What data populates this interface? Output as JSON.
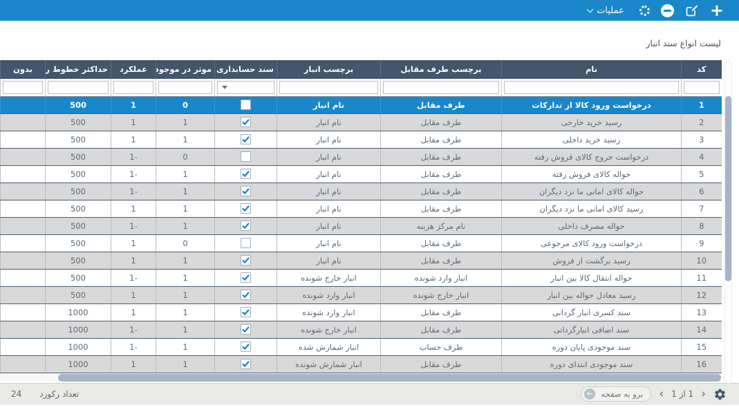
{
  "topbar": {
    "operations_label": "عملیات",
    "icons": [
      "plus-icon",
      "edit-icon",
      "minus-circle-icon",
      "spinner-icon",
      "chevron-down-icon"
    ]
  },
  "page": {
    "title": "لیست انواع سند انبار"
  },
  "table": {
    "columns": [
      {
        "key": "code",
        "label": "کد"
      },
      {
        "key": "name",
        "label": "نام"
      },
      {
        "key": "party",
        "label": "برچسب طرف مقابل"
      },
      {
        "key": "store",
        "label": "برچسب انبار"
      },
      {
        "key": "accdoc",
        "label": "سند حسابداری"
      },
      {
        "key": "effective",
        "label": "موثر در موجودی"
      },
      {
        "key": "func",
        "label": "عملکرد"
      },
      {
        "key": "maxlines",
        "label": "حداکثر خطوط ریز"
      },
      {
        "key": "extra",
        "label": "بدون"
      }
    ],
    "filter_values": {
      "code": "",
      "name": "",
      "party": "",
      "store": "",
      "accdoc": "",
      "effective": "",
      "func": "",
      "maxlines": "",
      "extra": ""
    },
    "selected_row_code": "1",
    "rows": [
      {
        "code": "1",
        "name": "درخواست ورود کالا از تدارکات",
        "party": "طرف مقابل",
        "store": "نام انبار",
        "accdoc": false,
        "effective": "0",
        "func": "1",
        "maxlines": "500",
        "extra": ""
      },
      {
        "code": "2",
        "name": "رسید خرید خارجی",
        "party": "طرف مقابل",
        "store": "نام انبار",
        "accdoc": true,
        "effective": "1",
        "func": "1",
        "maxlines": "500",
        "extra": ""
      },
      {
        "code": "3",
        "name": "رسید خرید داخلی",
        "party": "طرف مقابل",
        "store": "نام انبار",
        "accdoc": true,
        "effective": "1",
        "func": "1",
        "maxlines": "500",
        "extra": ""
      },
      {
        "code": "4",
        "name": "درخواست خروج کالای فروش رفته",
        "party": "طرف مقابل",
        "store": "نام انبار",
        "accdoc": false,
        "effective": "0",
        "func": "1-",
        "maxlines": "500",
        "extra": ""
      },
      {
        "code": "5",
        "name": "حواله کالای فروش رفته",
        "party": "طرف مقابل",
        "store": "نام انبار",
        "accdoc": true,
        "effective": "1",
        "func": "1-",
        "maxlines": "500",
        "extra": ""
      },
      {
        "code": "6",
        "name": "حواله کالای امانی ما نزد دیگران",
        "party": "طرف مقابل",
        "store": "نام انبار",
        "accdoc": true,
        "effective": "1",
        "func": "1-",
        "maxlines": "500",
        "extra": ""
      },
      {
        "code": "7",
        "name": "رسید کالای امانی ما نزد دیگران",
        "party": "طرف مقابل",
        "store": "نام انبار",
        "accdoc": true,
        "effective": "1",
        "func": "1",
        "maxlines": "500",
        "extra": ""
      },
      {
        "code": "8",
        "name": "حواله مصرف داخلی",
        "party": "نام مرکز هزینه",
        "store": "نام انبار",
        "accdoc": true,
        "effective": "1",
        "func": "1-",
        "maxlines": "500",
        "extra": ""
      },
      {
        "code": "9",
        "name": "درخواست ورود کالای مرجوعی",
        "party": "طرف مقابل",
        "store": "نام انبار",
        "accdoc": false,
        "effective": "0",
        "func": "1",
        "maxlines": "500",
        "extra": ""
      },
      {
        "code": "10",
        "name": "رسید برگشت از فروش",
        "party": "طرف مقابل",
        "store": "نام انبار",
        "accdoc": true,
        "effective": "1",
        "func": "1",
        "maxlines": "500",
        "extra": ""
      },
      {
        "code": "11",
        "name": "حواله انتقال کالا بین انبار",
        "party": "انبار وارد شونده",
        "store": "انبار خارج شونده",
        "accdoc": true,
        "effective": "1",
        "func": "1-",
        "maxlines": "500",
        "extra": ""
      },
      {
        "code": "12",
        "name": "رسید معادل حواله بین انبار",
        "party": "انبار خارج شونده",
        "store": "انبار وارد شونده",
        "accdoc": true,
        "effective": "1",
        "func": "1",
        "maxlines": "500",
        "extra": ""
      },
      {
        "code": "13",
        "name": "سند کسری انبار گردانی",
        "party": "طرف مقابل",
        "store": "انبار وارد شونده",
        "accdoc": true,
        "effective": "1",
        "func": "1",
        "maxlines": "1000",
        "extra": ""
      },
      {
        "code": "14",
        "name": "سند اضافی انبارگردانی",
        "party": "طرف مقابل",
        "store": "انبار خارج شونده",
        "accdoc": true,
        "effective": "1",
        "func": "1-",
        "maxlines": "1000",
        "extra": ""
      },
      {
        "code": "15",
        "name": "سند موجودی پایان دوره",
        "party": "طرف حساب",
        "store": "انبار شمارش شده",
        "accdoc": true,
        "effective": "1",
        "func": "1-",
        "maxlines": "1000",
        "extra": ""
      },
      {
        "code": "16",
        "name": "سند موجودی ابتدای دوره",
        "party": "طرف مقابل",
        "store": "انبار شمارش شونده",
        "accdoc": true,
        "effective": "1",
        "func": "1",
        "maxlines": "1000",
        "extra": ""
      }
    ]
  },
  "footer": {
    "record_count_label": "تعداد رکورد",
    "record_count": "24",
    "goto_page_label": "برو به صفحه",
    "page_info": "1 از 1"
  },
  "colors": {
    "accent_blue": "#1987c9",
    "header_slate": "#44566c",
    "row_alt_gray": "#d9d9d9",
    "scrollbar_thumb": "#a7b3c8",
    "footer_bg": "#e9e9e6"
  }
}
